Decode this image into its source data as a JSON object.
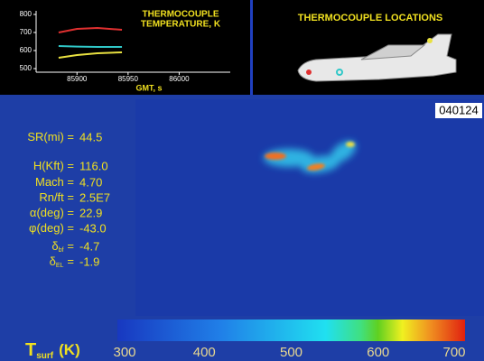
{
  "chart_data": {
    "type": "line",
    "title_lines": [
      "THERMOCOUPLE",
      "TEMPERATURE, K"
    ],
    "x_label": "GMT, s",
    "x": [
      85882,
      85900,
      85920,
      85944
    ],
    "series": [
      {
        "color": "#e03030",
        "values": [
          700,
          720,
          725,
          715
        ]
      },
      {
        "color": "#30c8c8",
        "values": [
          625,
          622,
          620,
          620
        ]
      },
      {
        "color": "#e8e040",
        "values": [
          560,
          575,
          585,
          590
        ]
      }
    ],
    "xlim": [
      85860,
      86050
    ],
    "xticks": [
      85900,
      85950,
      86000
    ],
    "ylim": [
      480,
      820
    ],
    "yticks": [
      500,
      600,
      700,
      800
    ]
  },
  "locations_panel": {
    "title": "THERMOCOUPLE LOCATIONS"
  },
  "frame_id": "040124",
  "readout": [
    {
      "label": "SR(mi) =",
      "value": "44.5"
    },
    {
      "label": "H(Kft) =",
      "value": "116.0"
    },
    {
      "label": "Mach =",
      "value": "4.70"
    },
    {
      "label": "Rn/ft =",
      "value": "2.5E7"
    },
    {
      "label": "α(deg) =",
      "value": "22.9"
    },
    {
      "label": "φ(deg) =",
      "value": "-43.0"
    },
    {
      "label": "δ",
      "sub": "bf",
      "eq": "=",
      "value": "-4.7"
    },
    {
      "label": "δ",
      "sub": "EL",
      "eq": "=",
      "value": "-1.9"
    }
  ],
  "colorbar": {
    "label": "T",
    "label_sub": "surf",
    "unit": "(K)",
    "lim": [
      300,
      700
    ],
    "ticks": [
      300,
      400,
      500,
      600,
      700
    ]
  }
}
